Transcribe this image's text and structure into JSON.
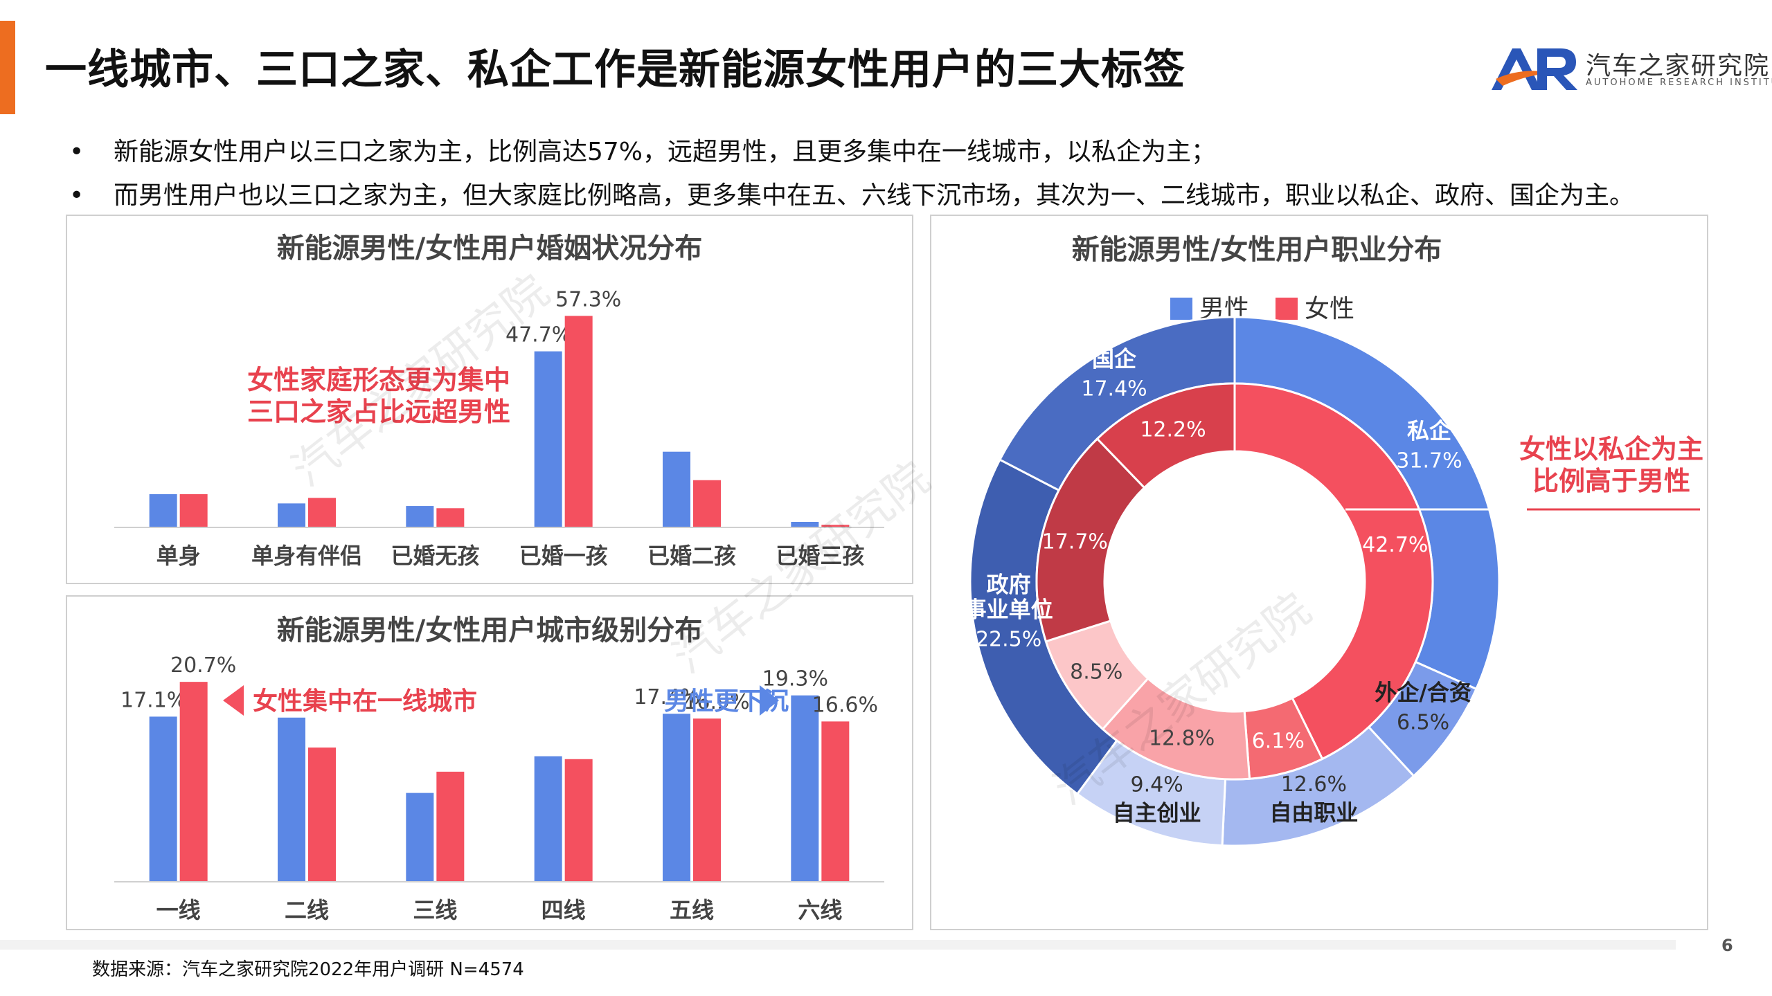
{
  "title": "一线城市、三口之家、私企工作是新能源女性用户的三大标签",
  "logo": {
    "cn": "汽车之家研究院",
    "en": "AUTOHOME RESEARCH INSTITUTE",
    "mark": "AR-logo-mark"
  },
  "bullets": [
    "新能源女性用户以三口之家为主，比例高达57%，远超男性，且更多集中在一线城市，以私企为主；",
    "而男性用户也以三口之家为主，但大家庭比例略高，更多集中在五、六线下沉市场，其次为一、二线城市，职业以私企、政府、国企为主。"
  ],
  "bullet_symbol": "•",
  "colors": {
    "male": "#5B87E5",
    "female": "#F4505F",
    "accent": "#ED6D20",
    "callout": "#E8424E",
    "callout_blue": "#5B87E5"
  },
  "chart_data": [
    {
      "type": "bar",
      "title": "新能源男性/女性用户婚姻状况分布",
      "categories": [
        "单身",
        "单身有伴侣",
        "已婚无孩",
        "已婚一孩",
        "已婚二孩",
        "已婚三孩"
      ],
      "series": [
        {
          "name": "男性",
          "values": [
            9.0,
            6.5,
            5.8,
            47.7,
            20.5,
            1.5
          ],
          "labels": [
            "",
            "",
            "",
            "47.7%",
            "",
            ""
          ]
        },
        {
          "name": "女性",
          "values": [
            9.0,
            8.0,
            5.2,
            57.3,
            12.8,
            0.7
          ],
          "labels": [
            "",
            "",
            "",
            "57.3%",
            "",
            ""
          ]
        }
      ],
      "ylim": [
        0,
        60
      ],
      "annotation": [
        "女性家庭形态更为集中",
        "三口之家占比远超男性"
      ]
    },
    {
      "type": "bar",
      "title": "新能源男性/女性用户城市级别分布",
      "categories": [
        "一线",
        "二线",
        "三线",
        "四线",
        "五线",
        "六线"
      ],
      "series": [
        {
          "name": "男性",
          "values": [
            17.1,
            17.0,
            9.2,
            13.0,
            17.4,
            19.3
          ],
          "labels": [
            "17.1%",
            "",
            "",
            "",
            "17.4%",
            "19.3%"
          ]
        },
        {
          "name": "女性",
          "values": [
            20.7,
            13.9,
            11.4,
            12.7,
            16.9,
            16.6
          ],
          "labels": [
            "20.7%",
            "",
            "",
            "",
            "16.9%",
            "16.6%"
          ]
        }
      ],
      "ylim": [
        0,
        22
      ],
      "annotations": [
        {
          "text": "女性集中在一线城市",
          "color": "female",
          "arrow": "left"
        },
        {
          "text": "男性更下沉",
          "color": "male",
          "arrow": "right"
        }
      ]
    },
    {
      "type": "pie",
      "subtype": "double-donut",
      "title": "新能源男性/女性用户职业分布",
      "legend": [
        "男性",
        "女性"
      ],
      "legend_position": "top",
      "categories": [
        "私企",
        "外企/合资",
        "自由职业",
        "自主创业",
        "政府\n事业单位",
        "国企"
      ],
      "series": [
        {
          "name": "男性",
          "ring": "outer",
          "values": [
            31.7,
            6.5,
            12.6,
            9.4,
            22.5,
            17.4
          ],
          "labels": [
            "31.7%",
            "6.5%",
            "12.6%",
            "9.4%",
            "22.5%",
            "17.4%"
          ]
        },
        {
          "name": "女性",
          "ring": "inner",
          "values": [
            42.7,
            6.1,
            12.8,
            8.5,
            17.7,
            12.2
          ],
          "labels": [
            "42.7%",
            "6.1%",
            "12.8%",
            "8.5%",
            "17.7%",
            "12.2%"
          ]
        }
      ],
      "outer_colors": [
        "#5B87E5",
        "#7B9BEA",
        "#A4B8F0",
        "#C6D2F5",
        "#3E5EB0",
        "#4A6CC2"
      ],
      "inner_colors": [
        "#F4505F",
        "#F46A72",
        "#F9A3A8",
        "#FCC6C8",
        "#C03A46",
        "#D8404C"
      ],
      "annotation": [
        "女性以私企为主",
        "比例高于男性"
      ]
    }
  ],
  "watermark": "汽车之家研究院",
  "page_number": "6",
  "source": "数据来源：汽车之家研究院2022年用户调研 N=4574"
}
